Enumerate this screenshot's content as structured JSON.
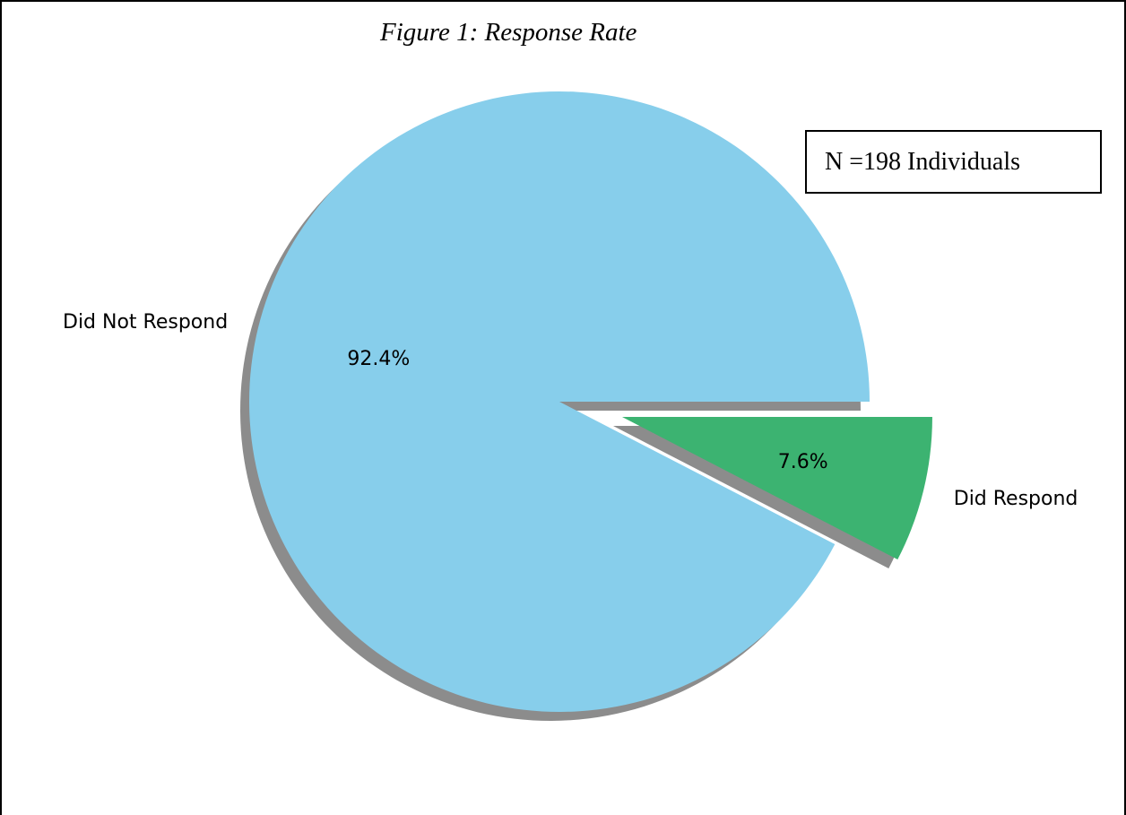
{
  "caption": "Figure 1: Response Rate",
  "annotation": "N =198 Individuals",
  "chart_data": {
    "type": "pie",
    "title": "Figure 1: Response Rate",
    "categories": [
      "Did Not Respond",
      "Did Respond"
    ],
    "values": [
      92.4,
      7.6
    ],
    "percent_labels": [
      "92.4%",
      "7.6%"
    ],
    "colors": [
      "#87CEEB",
      "#3CB371"
    ],
    "exploded": [
      false,
      true
    ],
    "shadow": true,
    "annotation": "N =198 Individuals"
  }
}
